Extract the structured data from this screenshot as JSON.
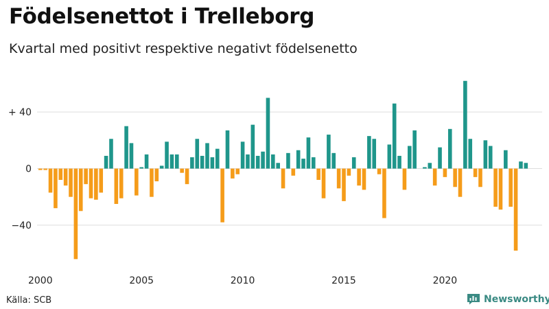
{
  "title": "Födelsenettot i Trelleborg",
  "subtitle": "Kvartal med positivt respektive negativt födelsenetto",
  "source": "Källa: SCB",
  "brand": {
    "name": "Newsworthy",
    "icon": "bar-chart-icon"
  },
  "colors": {
    "positive": "#1f968b",
    "negative": "#f59c1a",
    "grid": "#dddddd",
    "brand": "#3a8a83"
  },
  "chart_data": {
    "type": "bar",
    "title": "Födelsenettot i Trelleborg",
    "subtitle": "Kvartal med positivt respektive negativt födelsenetto",
    "xlabel": "",
    "ylabel": "",
    "start": "2000 Q1",
    "frequency": "quarterly",
    "ylim": [
      -66,
      64
    ],
    "y_ticks": [
      {
        "value": 40,
        "label": "+ 40"
      },
      {
        "value": 0,
        "label": "0"
      },
      {
        "value": -40,
        "label": "−40"
      }
    ],
    "x_ticks": [
      {
        "year": 2000,
        "label": "2000"
      },
      {
        "year": 2005,
        "label": "2005"
      },
      {
        "year": 2010,
        "label": "2010"
      },
      {
        "year": 2015,
        "label": "2015"
      },
      {
        "year": 2020,
        "label": "2020"
      }
    ],
    "values": [
      -1,
      -1,
      -17,
      -28,
      -8,
      -12,
      -20,
      -64,
      -30,
      -11,
      -21,
      -22,
      -17,
      9,
      21,
      -25,
      -21,
      30,
      18,
      -19,
      1,
      10,
      -20,
      -9,
      2,
      19,
      10,
      10,
      -3,
      -11,
      8,
      21,
      9,
      18,
      8,
      14,
      -38,
      27,
      -7,
      -4,
      19,
      10,
      31,
      9,
      12,
      50,
      10,
      4,
      -14,
      11,
      -5,
      13,
      7,
      22,
      8,
      -8,
      -21,
      24,
      11,
      -14,
      -23,
      -5,
      8,
      -12,
      -15,
      23,
      21,
      -4,
      -35,
      17,
      46,
      9,
      -15,
      16,
      27,
      0,
      1,
      4,
      -12,
      15,
      -6,
      28,
      -13,
      -20,
      62,
      21,
      -6,
      -13,
      20,
      16,
      -27,
      -29,
      13,
      -27,
      -58,
      5,
      4
    ]
  }
}
